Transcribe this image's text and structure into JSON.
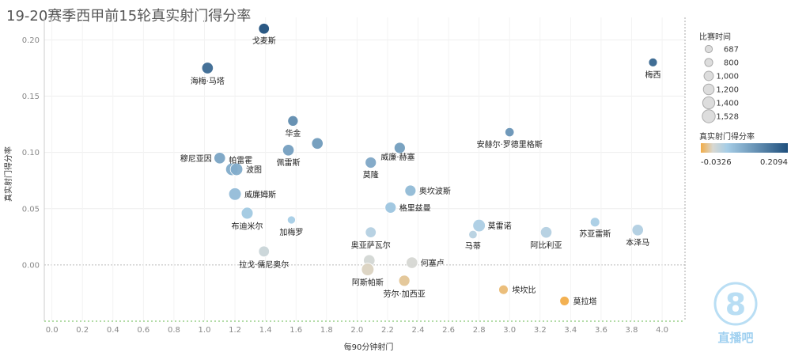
{
  "chart_data": {
    "type": "scatter",
    "title": "19-20赛季西甲前15轮真实射门得分率",
    "xlabel": "每90分钟射门",
    "ylabel": "真实射门得分率",
    "xlim": [
      -0.05,
      4.15
    ],
    "ylim": [
      -0.05,
      0.22
    ],
    "x_ticks": [
      "0.0",
      "0.2",
      "0.4",
      "0.6",
      "0.8",
      "1.0",
      "1.2",
      "1.4",
      "1.6",
      "1.8",
      "2.0",
      "2.2",
      "2.4",
      "2.6",
      "2.8",
      "3.0",
      "3.2",
      "3.4",
      "3.6",
      "3.8",
      "4.0"
    ],
    "y_ticks": [
      "-0.05",
      "0.00",
      "0.05",
      "0.10",
      "0.15",
      "0.20"
    ],
    "grid": true,
    "points": [
      {
        "label": "戈麦斯",
        "x": 1.39,
        "y": 0.21,
        "size": 1200
      },
      {
        "label": "海梅·马塔",
        "x": 1.02,
        "y": 0.175,
        "size": 1300
      },
      {
        "label": "梅西",
        "x": 3.94,
        "y": 0.18,
        "size": 900
      },
      {
        "label": "华金",
        "x": 1.58,
        "y": 0.128,
        "size": 1150
      },
      {
        "label": "",
        "x": 1.74,
        "y": 0.108,
        "size": 1300
      },
      {
        "label": "佩雷斯",
        "x": 1.55,
        "y": 0.102,
        "size": 1300
      },
      {
        "label": "威廉·赫塞",
        "x": 2.28,
        "y": 0.104,
        "size": 1250
      },
      {
        "label": "安赫尔·罗德里格斯",
        "x": 3.0,
        "y": 0.118,
        "size": 950
      },
      {
        "label": "莫隆",
        "x": 2.09,
        "y": 0.091,
        "size": 1250
      },
      {
        "label": "穆尼亚因",
        "x": 1.1,
        "y": 0.095,
        "size": 1300
      },
      {
        "label": "帕雷霍",
        "x": 1.18,
        "y": 0.085,
        "size": 1450
      },
      {
        "label": "波图",
        "x": 1.21,
        "y": 0.085,
        "size": 1450
      },
      {
        "label": "奥坎波斯",
        "x": 2.35,
        "y": 0.066,
        "size": 1250
      },
      {
        "label": "威廉姆斯",
        "x": 1.2,
        "y": 0.063,
        "size": 1450
      },
      {
        "label": "格里兹曼",
        "x": 2.22,
        "y": 0.051,
        "size": 1250
      },
      {
        "label": "布迪米尔",
        "x": 1.28,
        "y": 0.046,
        "size": 1350
      },
      {
        "label": "加梅罗",
        "x": 1.57,
        "y": 0.04,
        "size": 800
      },
      {
        "label": "奥亚萨瓦尔",
        "x": 2.09,
        "y": 0.029,
        "size": 1200
      },
      {
        "label": "莫雷诺",
        "x": 2.8,
        "y": 0.035,
        "size": 1450
      },
      {
        "label": "马蒂",
        "x": 2.76,
        "y": 0.027,
        "size": 850
      },
      {
        "label": "阿比利亚",
        "x": 3.24,
        "y": 0.029,
        "size": 1300
      },
      {
        "label": "苏亚雷斯",
        "x": 3.56,
        "y": 0.038,
        "size": 1000
      },
      {
        "label": "本泽马",
        "x": 3.84,
        "y": 0.031,
        "size": 1300
      },
      {
        "label": "拉戈·儒尼奥尔",
        "x": 1.39,
        "y": 0.012,
        "size": 1200
      },
      {
        "label": "",
        "x": 2.08,
        "y": 0.004,
        "size": 1300
      },
      {
        "label": "阿斯帕斯",
        "x": 2.07,
        "y": -0.004,
        "size": 1450
      },
      {
        "label": "何塞卢",
        "x": 2.36,
        "y": 0.002,
        "size": 1300
      },
      {
        "label": "劳尔·加西亚",
        "x": 2.31,
        "y": -0.014,
        "size": 1250
      },
      {
        "label": "埃坎比",
        "x": 2.96,
        "y": -0.022,
        "size": 1000
      },
      {
        "label": "莫拉塔",
        "x": 3.36,
        "y": -0.032,
        "size": 1000
      }
    ],
    "legend_size": {
      "title": "比赛时间",
      "entries": [
        "687",
        "800",
        "1,000",
        "1,200",
        "1,400",
        "1,528"
      ],
      "values": [
        687,
        800,
        1000,
        1200,
        1400,
        1528
      ]
    },
    "legend_color": {
      "title": "真实射门得分率",
      "min_label": "-0.0326",
      "max_label": "0.2094",
      "min": -0.0326,
      "max": 0.2094,
      "colors": {
        "low": "#f2ac46",
        "mid": "#d8d8d2",
        "light": "#a6cde6",
        "high": "#20507d"
      }
    },
    "watermark": {
      "text": "直播吧",
      "digit": "8"
    }
  }
}
